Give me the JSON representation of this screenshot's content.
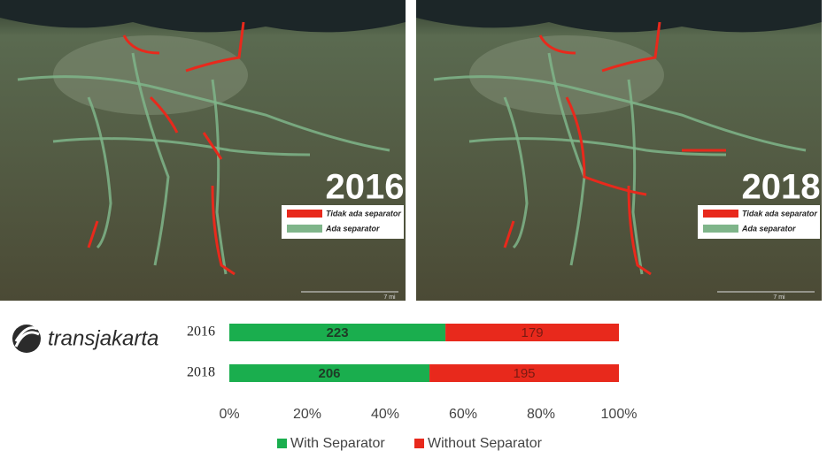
{
  "maps": [
    {
      "year": "2016",
      "legend": [
        "Tidak ada separator",
        "Ada separator"
      ],
      "scale": "7 mi"
    },
    {
      "year": "2018",
      "legend": [
        "Tidak ada separator",
        "Ada separator"
      ],
      "scale": "7 mi"
    }
  ],
  "logo": "transjakarta",
  "chart_data": {
    "type": "bar",
    "orientation": "horizontal",
    "stacked": "percent",
    "categories": [
      "2016",
      "2018"
    ],
    "series": [
      {
        "name": "With Separator",
        "color": "#1aae4e",
        "values": [
          223,
          206
        ]
      },
      {
        "name": "Without Separator",
        "color": "#e8291c",
        "values": [
          179,
          195
        ]
      }
    ],
    "xlim": [
      0,
      100
    ],
    "xticks": [
      {
        "value": 0,
        "label": "0%"
      },
      {
        "value": 20,
        "label": "20%"
      },
      {
        "value": 40,
        "label": "40%"
      },
      {
        "value": 60,
        "label": "60%"
      },
      {
        "value": 80,
        "label": "80%"
      },
      {
        "value": 100,
        "label": "100%"
      }
    ],
    "grid": false,
    "legend": "bottom"
  }
}
